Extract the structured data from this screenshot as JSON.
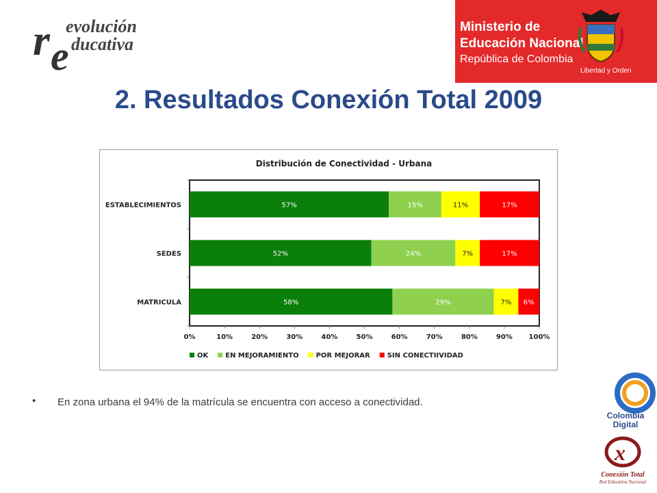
{
  "header": {
    "logo_left_text_1": "evolución",
    "logo_left_text_2": "ducativa",
    "ministry_line1": "Ministerio de",
    "ministry_line2": "Educación Nacional",
    "ministry_line3": "República de Colombia",
    "motto": "Libertad y Orden"
  },
  "title": "2. Resultados Conexión Total 2009",
  "bullet": {
    "text": "En zona urbana el 94% de la matrícula se encuentra con acceso a conectividad."
  },
  "logos": {
    "colombia_digital": [
      "Colombia",
      "Digital"
    ],
    "conexion_total": "Conexión Total",
    "conexion_total_sub": "Red Educativa Nacional"
  },
  "colors": {
    "ok": "#0a7f0a",
    "en_mejoramiento": "#8fd14f",
    "por_mejorar": "#ffff00",
    "sin_conectividad": "#ff0000",
    "title_blue": "#2b4a8a",
    "header_red": "#e3292a"
  },
  "chart_data": {
    "type": "bar",
    "orientation": "horizontal",
    "stacked": true,
    "title": "Distribución de Conectividad - Urbana",
    "categories": [
      "ESTABLECIMIENTOS",
      "SEDES",
      "MATRICULA"
    ],
    "series": [
      {
        "name": "OK",
        "values": [
          57,
          52,
          58
        ],
        "labels": [
          "57%",
          "52%",
          "58%"
        ],
        "color": "#0a7f0a"
      },
      {
        "name": "EN MEJORAMIENTO",
        "values": [
          15,
          24,
          29
        ],
        "labels": [
          "15%",
          "24%",
          "29%"
        ],
        "color": "#8fd14f"
      },
      {
        "name": "POR MEJORAR",
        "values": [
          11,
          7,
          7
        ],
        "labels": [
          "11%",
          "7%",
          "7%"
        ],
        "color": "#ffff00"
      },
      {
        "name": "SIN CONECTIIVIDAD",
        "values": [
          17,
          17,
          6
        ],
        "labels": [
          "17%",
          "17%",
          "6%"
        ],
        "color": "#ff0000"
      }
    ],
    "xlim": [
      0,
      100
    ],
    "xticks": [
      "0%",
      "10%",
      "20%",
      "30%",
      "40%",
      "50%",
      "60%",
      "70%",
      "80%",
      "90%",
      "100%"
    ],
    "grid": false,
    "legend_position": "bottom"
  }
}
